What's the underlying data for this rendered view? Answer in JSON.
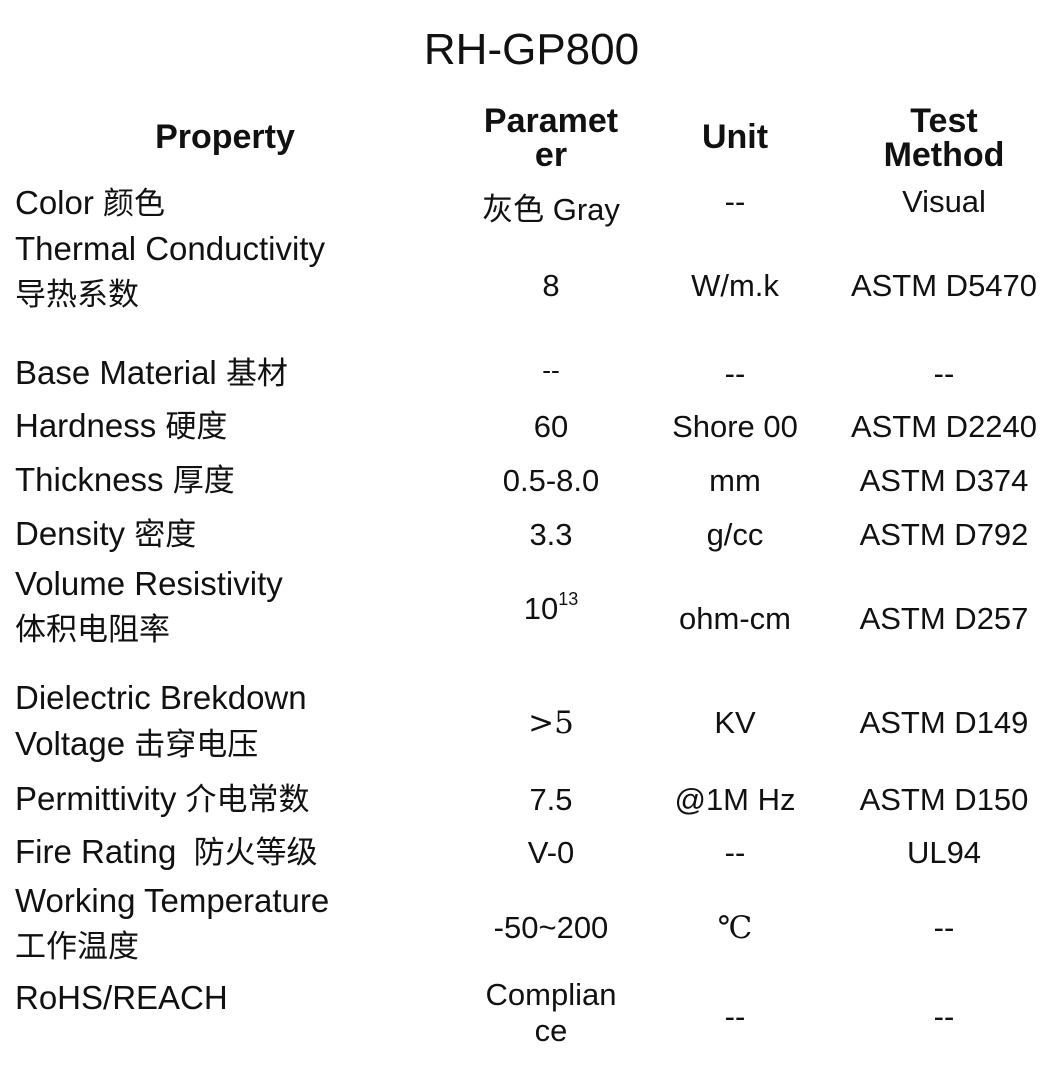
{
  "title": "RH-GP800",
  "headers": {
    "property": "Property",
    "parameter_1": "Paramet",
    "parameter_2": "er",
    "unit": "Unit",
    "method_1": "Test",
    "method_2": "Method"
  },
  "rows": [
    {
      "prop_en": "Color",
      "prop_zh": "颜色",
      "param_zh": "灰色",
      "param_en": "Gray",
      "unit": "--",
      "method": "Visual"
    },
    {
      "prop_en": "Thermal Conductivity",
      "prop_zh": "导热系数",
      "param": "8",
      "unit": "W/m.k",
      "method": "ASTM D5470"
    },
    {
      "prop_en": "Base Material",
      "prop_zh": "基材",
      "param": "--",
      "unit": "--",
      "method": "--"
    },
    {
      "prop_en": "Hardness",
      "prop_zh": "硬度",
      "param": "60",
      "unit": "Shore 00",
      "method": "ASTM D2240"
    },
    {
      "prop_en": "Thickness",
      "prop_zh": "厚度",
      "param": "0.5-8.0",
      "unit": "mm",
      "method": "ASTM D374"
    },
    {
      "prop_en": "Density",
      "prop_zh": "密度",
      "param": "3.3",
      "unit": "g/cc",
      "method": "ASTM D792"
    },
    {
      "prop_en": "Volume Resistivity",
      "prop_zh": "体积电阻率",
      "param_base": "10",
      "param_exp": "13",
      "unit": "ohm-cm",
      "method": "ASTM D257"
    },
    {
      "prop_en_1": "Dielectric Brekdown",
      "prop_en_2": "Voltage",
      "prop_zh": "击穿电压",
      "param": ">5",
      "unit": "KV",
      "method": "ASTM D149"
    },
    {
      "prop_en": "Permittivity",
      "prop_zh": "介电常数",
      "param": "7.5",
      "unit": "@1M Hz",
      "method": "ASTM D150"
    },
    {
      "prop_en": "Fire Rating",
      "prop_zh": "防火等级",
      "param": "V-0",
      "unit": "--",
      "method": "UL94"
    },
    {
      "prop_en": "Working Temperature",
      "prop_zh": "工作温度",
      "param": "-50~200",
      "unit": "℃",
      "method": "--"
    },
    {
      "prop_en": "RoHS/REACH",
      "param_1": "Complian",
      "param_2": "ce",
      "unit": "--",
      "method": "--"
    }
  ]
}
